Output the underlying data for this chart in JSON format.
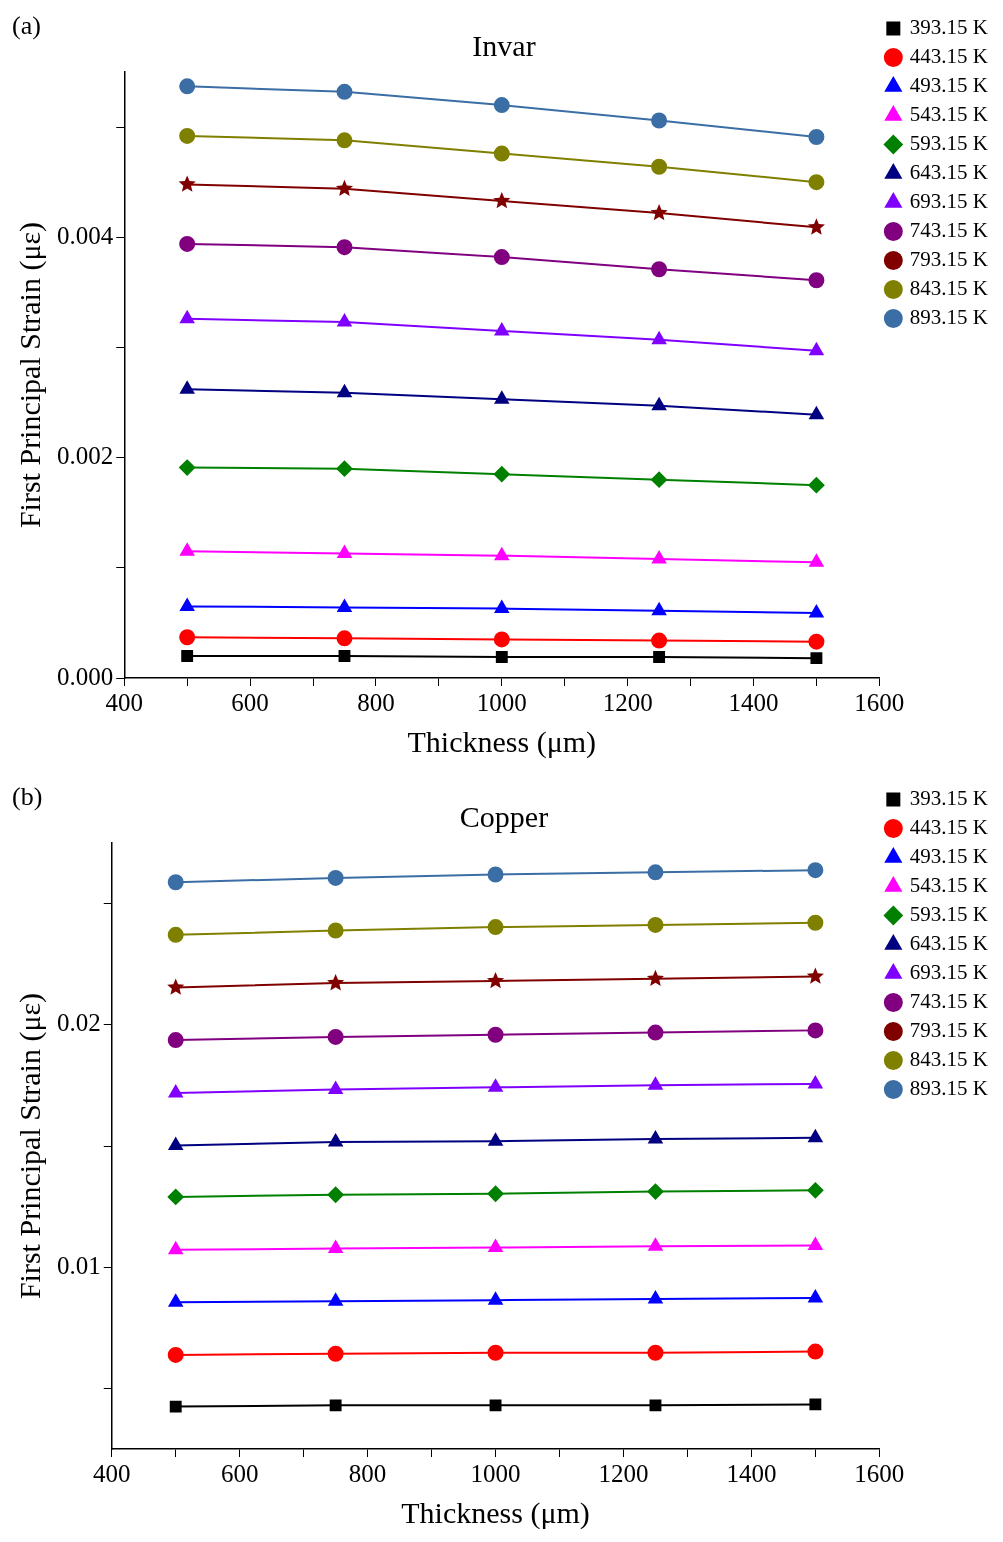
{
  "chart_data": [
    {
      "type": "line",
      "title": "Invar",
      "xlabel": "Thickness (μm)",
      "ylabel": "First Principal Strain (με)",
      "annotations": [
        "(a)"
      ],
      "legend": "right",
      "grid": false,
      "line_style": "solid",
      "x": [
        500,
        750,
        1000,
        1250,
        1500
      ],
      "xlim": [
        400,
        1600
      ],
      "xticks": [
        400,
        {
          "value": 500,
          "label": null
        },
        600,
        {
          "value": 700,
          "label": null
        },
        800,
        {
          "value": 900,
          "label": null
        },
        1000,
        {
          "value": 1100,
          "label": null
        },
        1200,
        {
          "value": 1300,
          "label": null
        },
        1400,
        {
          "value": 1500,
          "label": null
        },
        1600
      ],
      "ylim": [
        0,
        0.0055
      ],
      "yticks": [
        {
          "value": 0,
          "label": "0.000"
        },
        {
          "value": 0.001,
          "label": null
        },
        {
          "value": 0.002,
          "label": "0.002"
        },
        {
          "value": 0.003,
          "label": null
        },
        {
          "value": 0.004,
          "label": "0.004"
        },
        {
          "value": 0.005,
          "label": null
        }
      ],
      "series": [
        {
          "name": "393.15 K",
          "color": "#000000",
          "marker": "square",
          "values": [
            0.0002,
            0.0002,
            0.00019,
            0.00019,
            0.00018
          ]
        },
        {
          "name": "443.15 K",
          "color": "#ff0000",
          "marker": "circle",
          "values": [
            0.00037,
            0.00036,
            0.00035,
            0.00034,
            0.00033
          ]
        },
        {
          "name": "493.15 K",
          "color": "#0000ff",
          "marker": "triangle",
          "values": [
            0.00065,
            0.00064,
            0.00063,
            0.00061,
            0.00059
          ]
        },
        {
          "name": "543.15 K",
          "color": "#ff00ff",
          "marker": "triangle",
          "values": [
            0.00115,
            0.00113,
            0.00111,
            0.00108,
            0.00105
          ]
        },
        {
          "name": "593.15 K",
          "color": "#008000",
          "marker": "diamond",
          "values": [
            0.00191,
            0.0019,
            0.00185,
            0.0018,
            0.00175
          ]
        },
        {
          "name": "643.15 K",
          "color": "#000080",
          "marker": "triangle",
          "values": [
            0.00262,
            0.00259,
            0.00253,
            0.00247,
            0.00239
          ]
        },
        {
          "name": "693.15 K",
          "color": "#8000ff",
          "marker": "triangle",
          "values": [
            0.00326,
            0.00323,
            0.00315,
            0.00307,
            0.00297
          ]
        },
        {
          "name": "743.15 K",
          "color": "#800080",
          "marker": "circle",
          "values": [
            0.00394,
            0.00391,
            0.00382,
            0.00371,
            0.00361
          ]
        },
        {
          "name": "793.15 K",
          "color": "#800000",
          "marker": "star",
          "values": [
            0.00448,
            0.00444,
            0.00433,
            0.00422,
            0.00409
          ]
        },
        {
          "name": "843.15 K",
          "color": "#808000",
          "marker": "circle",
          "values": [
            0.00492,
            0.00488,
            0.00476,
            0.00464,
            0.0045
          ]
        },
        {
          "name": "893.15 K",
          "color": "#3b6ea5",
          "marker": "circle",
          "values": [
            0.00537,
            0.00532,
            0.0052,
            0.00506,
            0.00491
          ]
        }
      ]
    },
    {
      "type": "line",
      "title": "Copper",
      "xlabel": "Thickness (μm)",
      "ylabel": "First Principal Strain (με)",
      "annotations": [
        "(b)"
      ],
      "legend": "right",
      "grid": false,
      "line_style": "solid",
      "x": [
        500,
        750,
        1000,
        1250,
        1500
      ],
      "xlim": [
        400,
        1600
      ],
      "xticks": [
        400,
        {
          "value": 500,
          "label": null
        },
        600,
        {
          "value": 700,
          "label": null
        },
        800,
        {
          "value": 900,
          "label": null
        },
        1000,
        {
          "value": 1100,
          "label": null
        },
        1200,
        {
          "value": 1300,
          "label": null
        },
        1400,
        {
          "value": 1500,
          "label": null
        },
        1600
      ],
      "ylim": [
        0.0025,
        0.0275
      ],
      "yticks": [
        {
          "value": 0.005,
          "label": null
        },
        0.01,
        {
          "value": 0.015,
          "label": null
        },
        0.02,
        {
          "value": 0.025,
          "label": null
        }
      ],
      "series": [
        {
          "name": "393.15 K",
          "color": "#000000",
          "marker": "square",
          "values": [
            0.00425,
            0.0043,
            0.0043,
            0.0043,
            0.00434
          ]
        },
        {
          "name": "443.15 K",
          "color": "#ff0000",
          "marker": "circle",
          "values": [
            0.00638,
            0.00643,
            0.00647,
            0.00647,
            0.00652
          ]
        },
        {
          "name": "493.15 K",
          "color": "#0000ff",
          "marker": "triangle",
          "values": [
            0.00855,
            0.0086,
            0.00864,
            0.00869,
            0.00873
          ]
        },
        {
          "name": "543.15 K",
          "color": "#ff00ff",
          "marker": "triangle",
          "values": [
            0.01072,
            0.01077,
            0.01081,
            0.01086,
            0.0109
          ]
        },
        {
          "name": "593.15 K",
          "color": "#008000",
          "marker": "diamond",
          "values": [
            0.0129,
            0.01299,
            0.01303,
            0.01312,
            0.01317
          ]
        },
        {
          "name": "643.15 K",
          "color": "#000080",
          "marker": "triangle",
          "values": [
            0.01502,
            0.01516,
            0.0152,
            0.01529,
            0.01534
          ]
        },
        {
          "name": "693.15 K",
          "color": "#8000ff",
          "marker": "triangle",
          "values": [
            0.01719,
            0.01733,
            0.01742,
            0.01751,
            0.01756
          ]
        },
        {
          "name": "743.15 K",
          "color": "#800080",
          "marker": "circle",
          "values": [
            0.01937,
            0.0195,
            0.01959,
            0.01968,
            0.01977
          ]
        },
        {
          "name": "793.15 K",
          "color": "#800000",
          "marker": "star",
          "values": [
            0.02154,
            0.02172,
            0.02181,
            0.0219,
            0.02199
          ]
        },
        {
          "name": "843.15 K",
          "color": "#808000",
          "marker": "circle",
          "values": [
            0.02371,
            0.02389,
            0.02403,
            0.02412,
            0.02421
          ]
        },
        {
          "name": "893.15 K",
          "color": "#3b6ea5",
          "marker": "circle",
          "values": [
            0.02588,
            0.02606,
            0.0262,
            0.02629,
            0.02638
          ]
        }
      ]
    }
  ]
}
